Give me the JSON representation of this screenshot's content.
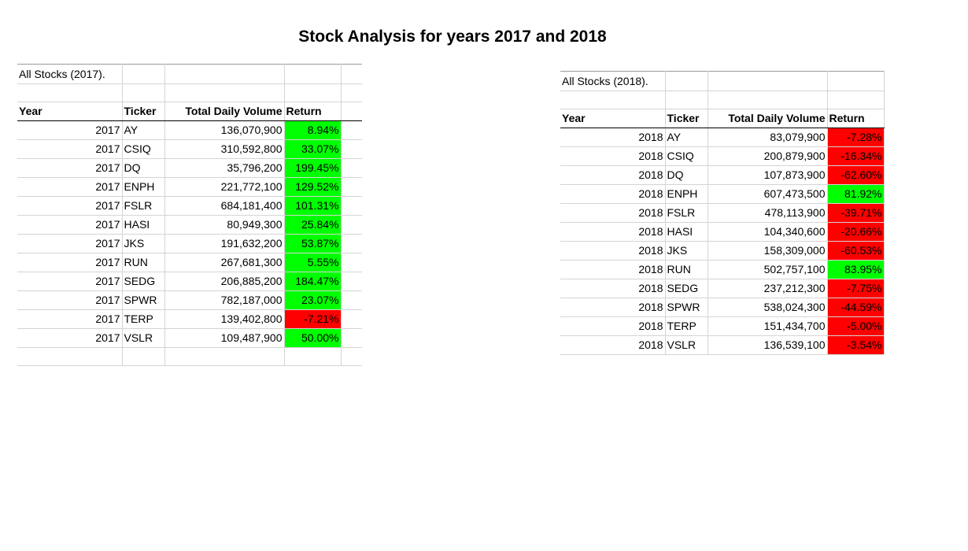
{
  "title": "Stock Analysis for years 2017 and 2018",
  "colors": {
    "positive": "#00ff00",
    "negative": "#ff0000"
  },
  "tables": [
    {
      "label": "All Stocks (2017).",
      "headers": {
        "year": "Year",
        "ticker": "Ticker",
        "volume": "Total Daily Volume",
        "return": "Return"
      },
      "rows": [
        {
          "year": "2017",
          "ticker": "AY",
          "volume": "136,070,900",
          "return": "8.94%",
          "status": "positive"
        },
        {
          "year": "2017",
          "ticker": "CSIQ",
          "volume": "310,592,800",
          "return": "33.07%",
          "status": "positive"
        },
        {
          "year": "2017",
          "ticker": "DQ",
          "volume": "35,796,200",
          "return": "199.45%",
          "status": "positive"
        },
        {
          "year": "2017",
          "ticker": "ENPH",
          "volume": "221,772,100",
          "return": "129.52%",
          "status": "positive"
        },
        {
          "year": "2017",
          "ticker": "FSLR",
          "volume": "684,181,400",
          "return": "101.31%",
          "status": "positive"
        },
        {
          "year": "2017",
          "ticker": "HASI",
          "volume": "80,949,300",
          "return": "25.84%",
          "status": "positive"
        },
        {
          "year": "2017",
          "ticker": "JKS",
          "volume": "191,632,200",
          "return": "53.87%",
          "status": "positive"
        },
        {
          "year": "2017",
          "ticker": "RUN",
          "volume": "267,681,300",
          "return": "5.55%",
          "status": "positive"
        },
        {
          "year": "2017",
          "ticker": "SEDG",
          "volume": "206,885,200",
          "return": "184.47%",
          "status": "positive"
        },
        {
          "year": "2017",
          "ticker": "SPWR",
          "volume": "782,187,000",
          "return": "23.07%",
          "status": "positive"
        },
        {
          "year": "2017",
          "ticker": "TERP",
          "volume": "139,402,800",
          "return": "-7.21%",
          "status": "negative"
        },
        {
          "year": "2017",
          "ticker": "VSLR",
          "volume": "109,487,900",
          "return": "50.00%",
          "status": "positive"
        }
      ]
    },
    {
      "label": "All Stocks (2018).",
      "headers": {
        "year": "Year",
        "ticker": "Ticker",
        "volume": "Total Daily Volume",
        "return": "Return"
      },
      "rows": [
        {
          "year": "2018",
          "ticker": "AY",
          "volume": "83,079,900",
          "return": "-7.28%",
          "status": "negative"
        },
        {
          "year": "2018",
          "ticker": "CSIQ",
          "volume": "200,879,900",
          "return": "-16.34%",
          "status": "negative"
        },
        {
          "year": "2018",
          "ticker": "DQ",
          "volume": "107,873,900",
          "return": "-62.60%",
          "status": "negative"
        },
        {
          "year": "2018",
          "ticker": "ENPH",
          "volume": "607,473,500",
          "return": "81.92%",
          "status": "positive"
        },
        {
          "year": "2018",
          "ticker": "FSLR",
          "volume": "478,113,900",
          "return": "-39.71%",
          "status": "negative"
        },
        {
          "year": "2018",
          "ticker": "HASI",
          "volume": "104,340,600",
          "return": "-20.66%",
          "status": "negative"
        },
        {
          "year": "2018",
          "ticker": "JKS",
          "volume": "158,309,000",
          "return": "-60.53%",
          "status": "negative"
        },
        {
          "year": "2018",
          "ticker": "RUN",
          "volume": "502,757,100",
          "return": "83.95%",
          "status": "positive"
        },
        {
          "year": "2018",
          "ticker": "SEDG",
          "volume": "237,212,300",
          "return": "-7.75%",
          "status": "negative"
        },
        {
          "year": "2018",
          "ticker": "SPWR",
          "volume": "538,024,300",
          "return": "-44.59%",
          "status": "negative"
        },
        {
          "year": "2018",
          "ticker": "TERP",
          "volume": "151,434,700",
          "return": "-5.00%",
          "status": "negative"
        },
        {
          "year": "2018",
          "ticker": "VSLR",
          "volume": "136,539,100",
          "return": "-3.54%",
          "status": "negative"
        }
      ]
    }
  ]
}
